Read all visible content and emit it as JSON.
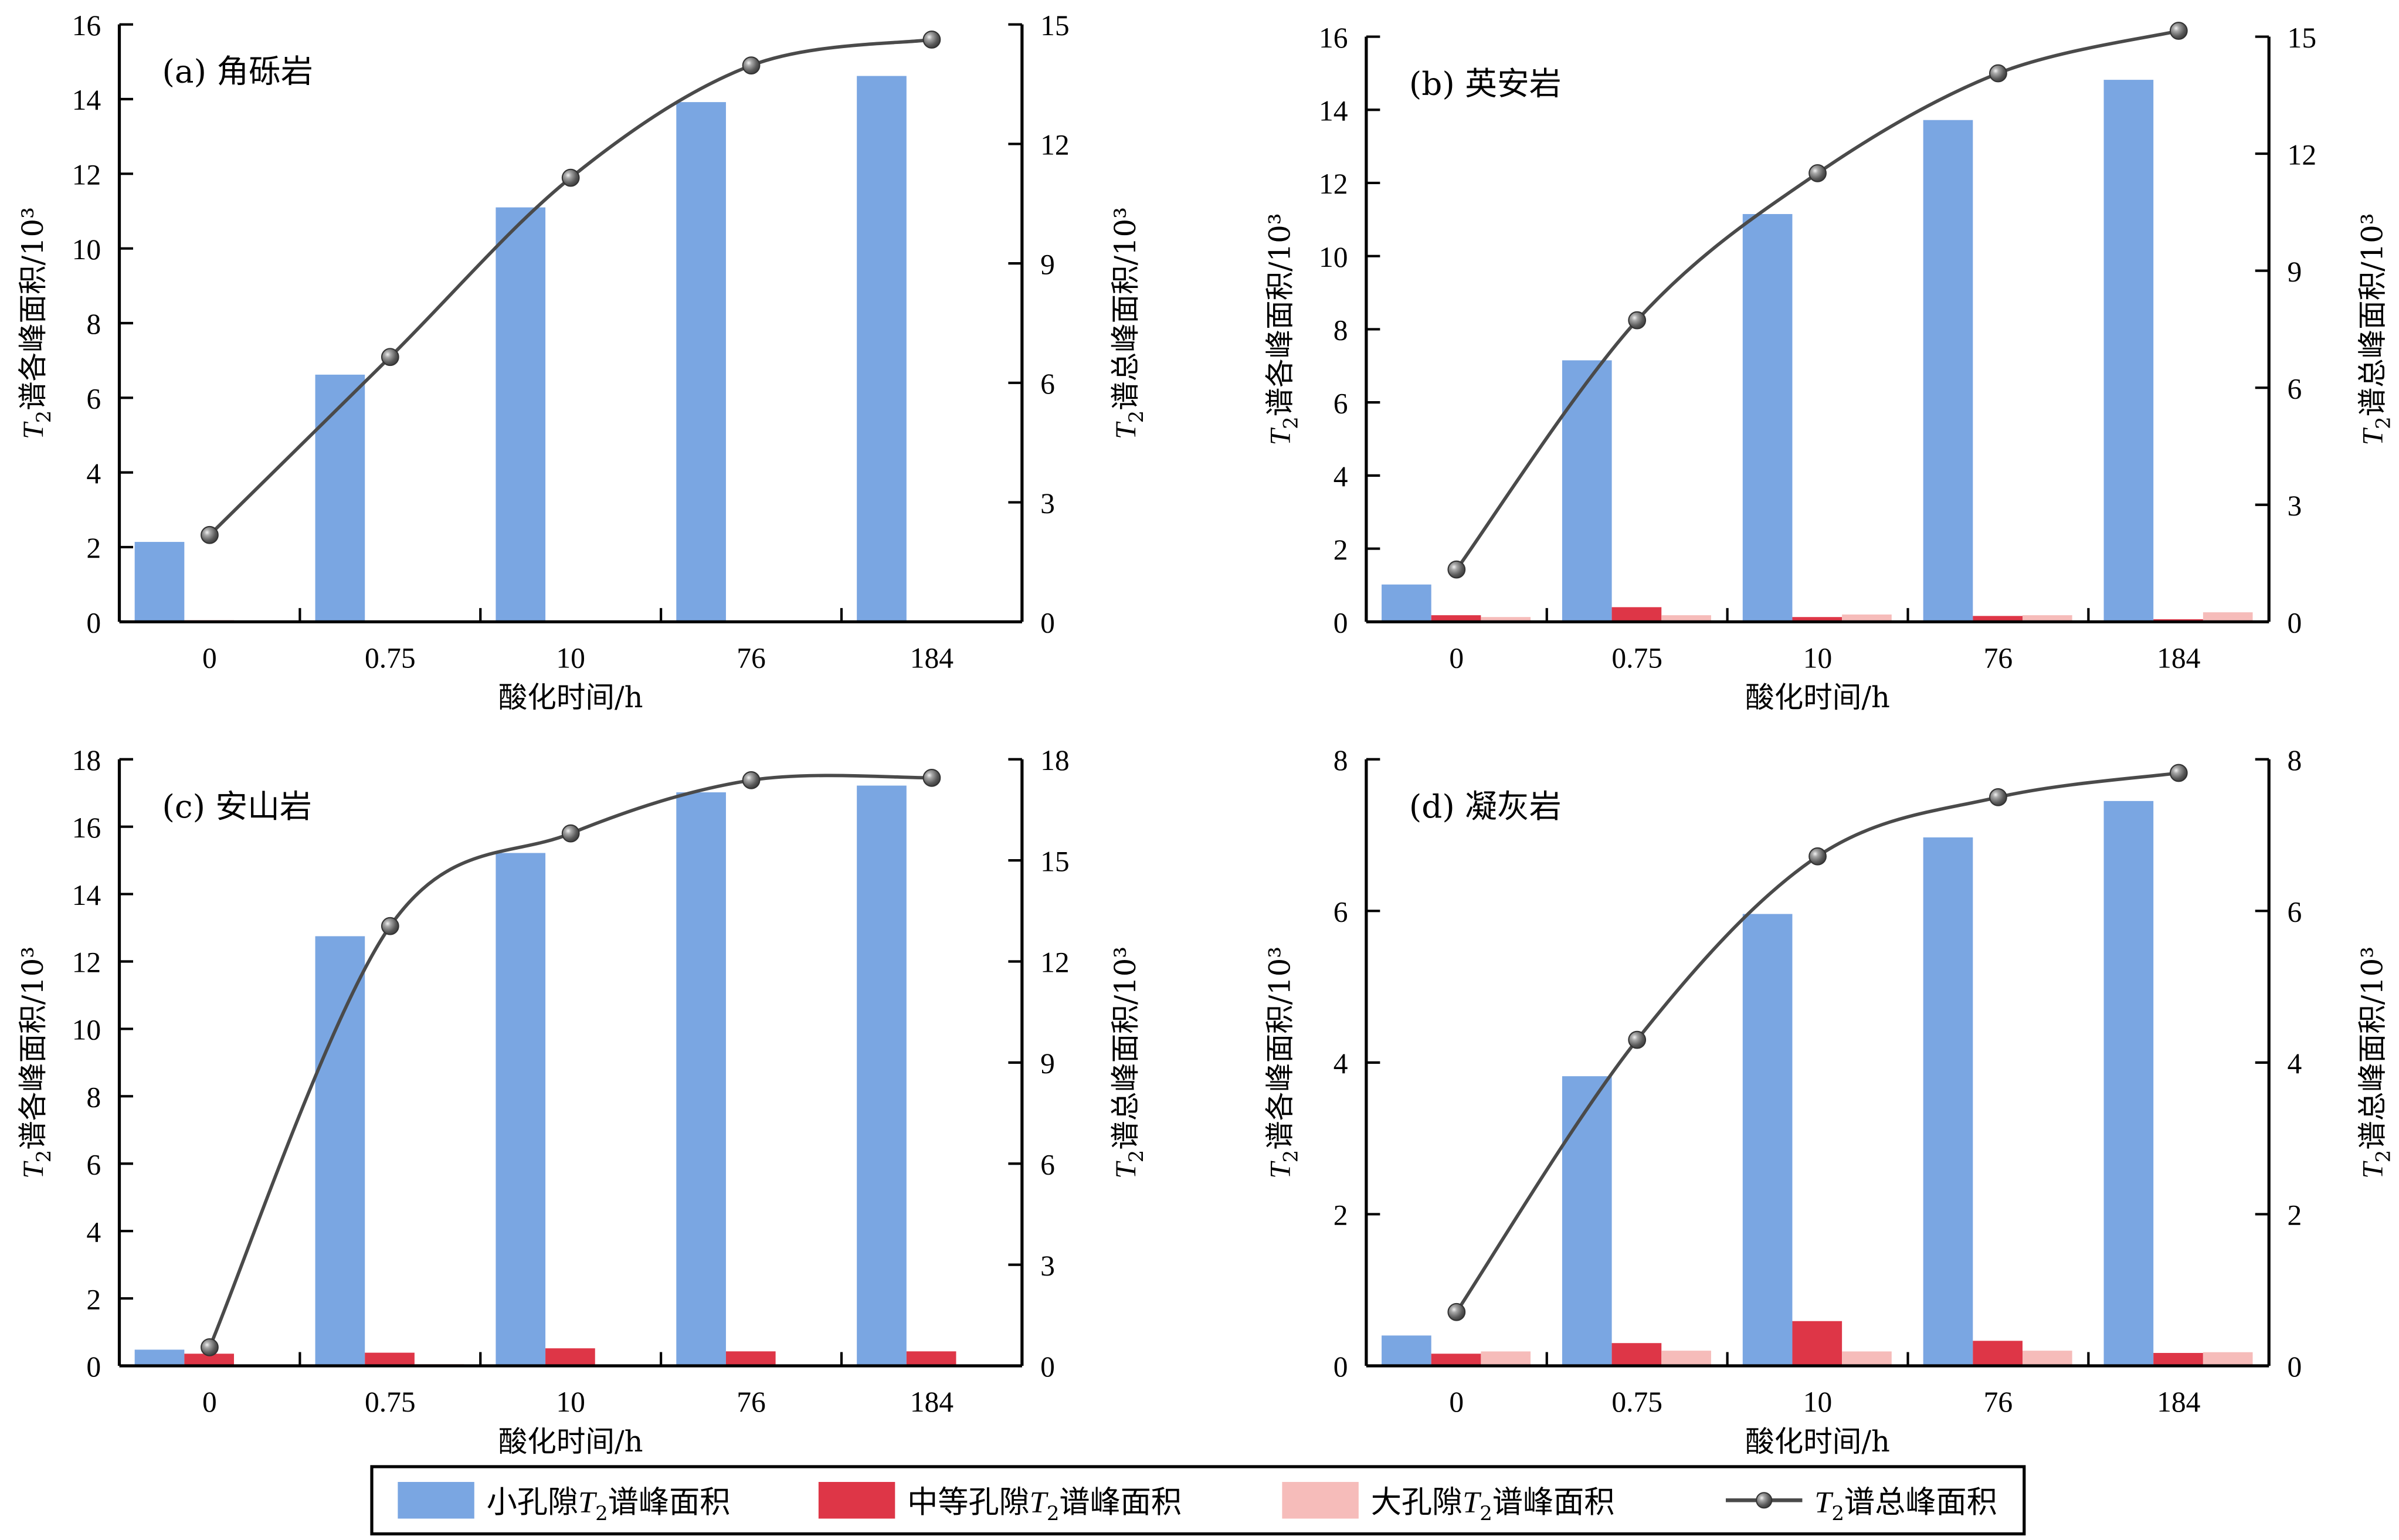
{
  "figure": {
    "legend": {
      "items": [
        {
          "key": "small",
          "label_pre": "小孔隙",
          "label_t": "T",
          "label_sub": "2",
          "label_post": "谱峰面积",
          "color": "#7aa6e2",
          "kind": "bar"
        },
        {
          "key": "medium",
          "label_pre": "中等孔隙",
          "label_t": "T",
          "label_sub": "2",
          "label_post": "谱峰面积",
          "color": "#de3647",
          "kind": "bar"
        },
        {
          "key": "large",
          "label_pre": "大孔隙",
          "label_t": "T",
          "label_sub": "2",
          "label_post": "谱峰面积",
          "color": "#f6bcba",
          "kind": "bar"
        },
        {
          "key": "total",
          "label_pre": "",
          "label_t": "T",
          "label_sub": "2",
          "label_post": "谱总峰面积",
          "color": "#4a4a4a",
          "kind": "line"
        }
      ]
    }
  },
  "chart_data": [
    {
      "type": "bar",
      "panel": "(a) 角砾岩",
      "title": "(a) 角砾岩",
      "xlabel": "酸化时间/h",
      "ylabel": "T2谱各峰面积/10³",
      "ylabel_parts": {
        "t": "T",
        "sub": "2",
        "rest": "谱各峰面积/10³"
      },
      "y2label": "T2谱总峰面积/10³",
      "y2label_parts": {
        "t": "T",
        "sub": "2",
        "rest": "谱总峰面积/10³"
      },
      "categories": [
        "0",
        "0.75",
        "10",
        "76",
        "184"
      ],
      "ylim": [
        0,
        16
      ],
      "yticks": [
        0,
        2,
        4,
        6,
        8,
        10,
        12,
        14,
        16
      ],
      "y2lim": [
        0,
        15
      ],
      "y2ticks": [
        0,
        3,
        6,
        9,
        12,
        15
      ],
      "series": [
        {
          "name": "小孔隙T2谱峰面积",
          "axis": "left",
          "type": "bar",
          "values": [
            2.14,
            6.62,
            11.1,
            13.92,
            14.62
          ]
        },
        {
          "name": "中等孔隙T2谱峰面积",
          "axis": "left",
          "type": "bar",
          "values": [
            0.04,
            0.0,
            0.0,
            0.0,
            0.0
          ]
        },
        {
          "name": "大孔隙T2谱峰面积",
          "axis": "left",
          "type": "bar",
          "values": [
            0.03,
            0.03,
            0.03,
            0.03,
            0.03
          ]
        },
        {
          "name": "T2谱总峰面积",
          "axis": "right",
          "type": "line",
          "values": [
            2.18,
            6.65,
            11.15,
            13.97,
            14.62
          ]
        }
      ]
    },
    {
      "type": "bar",
      "panel": "(b) 英安岩",
      "title": "(b) 英安岩",
      "xlabel": "酸化时间/h",
      "ylabel": "T2谱各峰面积/10³",
      "ylabel_parts": {
        "t": "T",
        "sub": "2",
        "rest": "谱各峰面积/10³"
      },
      "y2label": "T2谱总峰面积/10³",
      "y2label_parts": {
        "t": "T",
        "sub": "2",
        "rest": "谱总峰面积/10³"
      },
      "categories": [
        "0",
        "0.75",
        "10",
        "76",
        "184"
      ],
      "ylim": [
        0,
        16
      ],
      "yticks": [
        0,
        2,
        4,
        6,
        8,
        10,
        12,
        14,
        16
      ],
      "y2lim": [
        0,
        15
      ],
      "y2ticks": [
        0,
        3,
        6,
        9,
        12,
        15
      ],
      "series": [
        {
          "name": "小孔隙T2谱峰面积",
          "axis": "left",
          "type": "bar",
          "values": [
            1.02,
            7.15,
            11.15,
            13.72,
            14.82
          ]
        },
        {
          "name": "中等孔隙T2谱峰面积",
          "axis": "left",
          "type": "bar",
          "values": [
            0.18,
            0.4,
            0.13,
            0.16,
            0.07
          ]
        },
        {
          "name": "大孔隙T2谱峰面积",
          "axis": "left",
          "type": "bar",
          "values": [
            0.13,
            0.18,
            0.2,
            0.18,
            0.26
          ]
        },
        {
          "name": "T2谱总峰面积",
          "axis": "right",
          "type": "line",
          "values": [
            1.34,
            7.73,
            11.5,
            14.06,
            15.15
          ]
        }
      ]
    },
    {
      "type": "bar",
      "panel": "(c) 安山岩",
      "title": "(c) 安山岩",
      "xlabel": "酸化时间/h",
      "ylabel": "T2谱各峰面积/10³",
      "ylabel_parts": {
        "t": "T",
        "sub": "2",
        "rest": "谱各峰面积/10³"
      },
      "y2label": "T2谱总峰面积/10³",
      "y2label_parts": {
        "t": "T",
        "sub": "2",
        "rest": "谱总峰面积/10³"
      },
      "categories": [
        "0",
        "0.75",
        "10",
        "76",
        "184"
      ],
      "ylim": [
        0,
        18
      ],
      "yticks": [
        0,
        2,
        4,
        6,
        8,
        10,
        12,
        14,
        16,
        18
      ],
      "y2lim": [
        0,
        18
      ],
      "y2ticks": [
        0,
        3,
        6,
        9,
        12,
        15,
        18
      ],
      "series": [
        {
          "name": "小孔隙T2谱峰面积",
          "axis": "left",
          "type": "bar",
          "values": [
            0.48,
            12.75,
            15.22,
            17.02,
            17.22
          ]
        },
        {
          "name": "中等孔隙T2谱峰面积",
          "axis": "left",
          "type": "bar",
          "values": [
            0.36,
            0.39,
            0.52,
            0.43,
            0.43
          ]
        },
        {
          "name": "大孔隙T2谱峰面积",
          "axis": "left",
          "type": "bar",
          "values": [
            0.03,
            0.05,
            0.03,
            0.03,
            0.03
          ]
        },
        {
          "name": "T2谱总峰面积",
          "axis": "right",
          "type": "line",
          "values": [
            0.55,
            13.05,
            15.8,
            17.38,
            17.45
          ]
        }
      ]
    },
    {
      "type": "bar",
      "panel": "(d) 凝灰岩",
      "title": "(d) 凝灰岩",
      "xlabel": "酸化时间/h",
      "ylabel": "T2谱各峰面积/10³",
      "ylabel_parts": {
        "t": "T",
        "sub": "2",
        "rest": "谱各峰面积/10³"
      },
      "y2label": "T2谱总峰面积/10³",
      "y2label_parts": {
        "t": "T",
        "sub": "2",
        "rest": "谱总峰面积/10³"
      },
      "categories": [
        "0",
        "0.75",
        "10",
        "76",
        "184"
      ],
      "ylim": [
        0,
        8
      ],
      "yticks": [
        0,
        2,
        4,
        6,
        8
      ],
      "y2lim": [
        0,
        8
      ],
      "y2ticks": [
        0,
        2,
        4,
        6,
        8
      ],
      "series": [
        {
          "name": "小孔隙T2谱峰面积",
          "axis": "left",
          "type": "bar",
          "values": [
            0.4,
            3.82,
            5.96,
            6.97,
            7.45
          ]
        },
        {
          "name": "中等孔隙T2谱峰面积",
          "axis": "left",
          "type": "bar",
          "values": [
            0.16,
            0.3,
            0.59,
            0.33,
            0.17
          ]
        },
        {
          "name": "大孔隙T2谱峰面积",
          "axis": "left",
          "type": "bar",
          "values": [
            0.19,
            0.2,
            0.19,
            0.2,
            0.18
          ]
        },
        {
          "name": "T2谱总峰面积",
          "axis": "right",
          "type": "line",
          "values": [
            0.71,
            4.3,
            6.72,
            7.5,
            7.82
          ]
        }
      ]
    }
  ]
}
